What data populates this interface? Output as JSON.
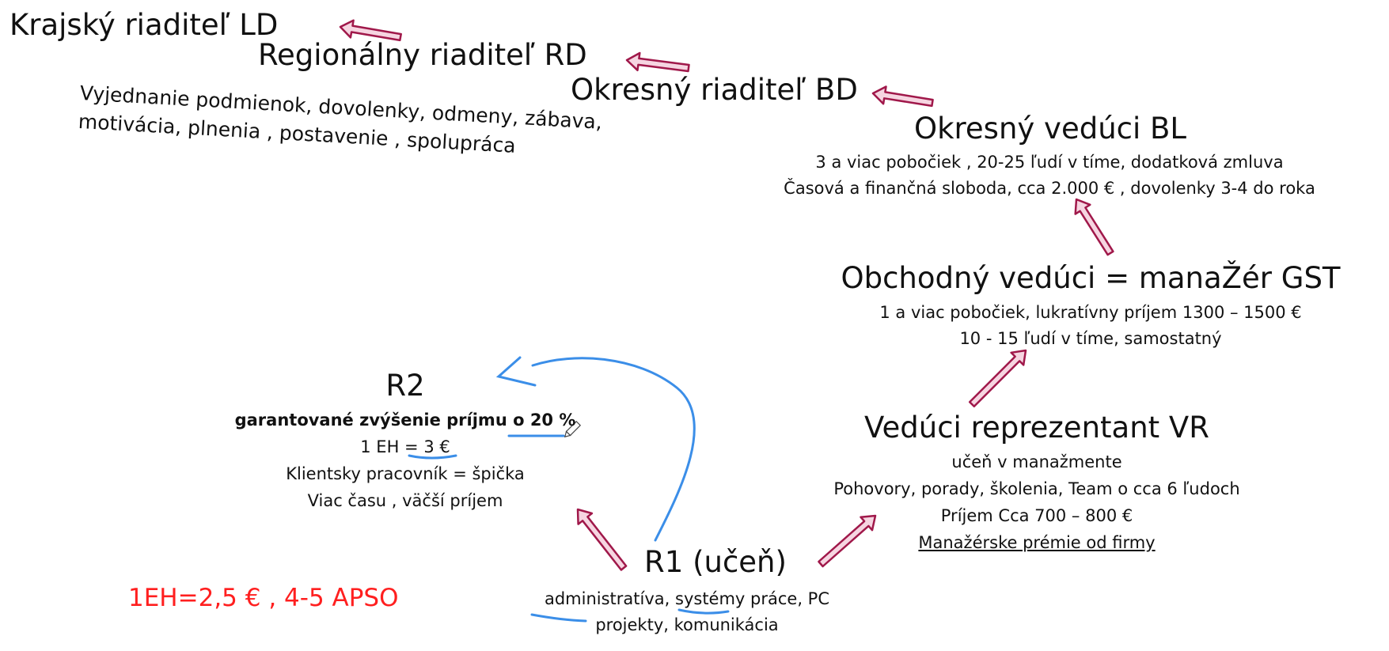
{
  "levels": {
    "ld": {
      "title": "Krajský riaditeľ LD"
    },
    "rd": {
      "title": "Regionálny riaditeľ RD",
      "notes": [
        "Vyjednanie podmienok, dovolenky, odmeny, zábava,",
        "motivácia, plnenia , postavenie , spolupráca"
      ]
    },
    "bd": {
      "title": "Okresný riaditeľ BD"
    },
    "bl": {
      "title": "Okresný vedúci BL",
      "lines": [
        "3 a viac pobočiek , 20-25 ľudí v tíme, dodatková zmluva",
        "Časová a finančná sloboda, cca 2.000 € , dovolenky 3-4 do roka"
      ]
    },
    "gst": {
      "title": "Obchodný vedúci = manaŽér GST",
      "lines": [
        "1 a viac pobočiek, lukratívny príjem 1300 – 1500 €",
        "10 - 15 ľudí v tíme, samostatný"
      ]
    },
    "vr": {
      "title": "Vedúci reprezentant VR",
      "lines": [
        "učeň v manažmente",
        "Pohovory, porady, školenia, Team o cca 6 ľudoch",
        "Príjem Cca 700 – 800 €",
        "Manažérske prémie od firmy"
      ]
    },
    "r2": {
      "title": "R2",
      "lines": [
        "garantované zvýšenie príjmu o 20 %",
        "1 EH = 3 €",
        "Klientsky pracovník = špička",
        "Viac času , väčší príjem"
      ]
    },
    "r1": {
      "title": "R1 (učeň)",
      "lines": [
        "administratíva,  systémy práce, PC",
        "projekty, komunikácia"
      ]
    }
  },
  "note_red": "1EH=2,5 € , 4-5 APSO",
  "colors": {
    "arrow_fill": "#f6d5e1",
    "arrow_stroke": "#a0184a",
    "ink_blue": "#3b8ee8",
    "red_note": "#ff1f1f"
  },
  "icons": [
    "pen-cursor-icon"
  ]
}
